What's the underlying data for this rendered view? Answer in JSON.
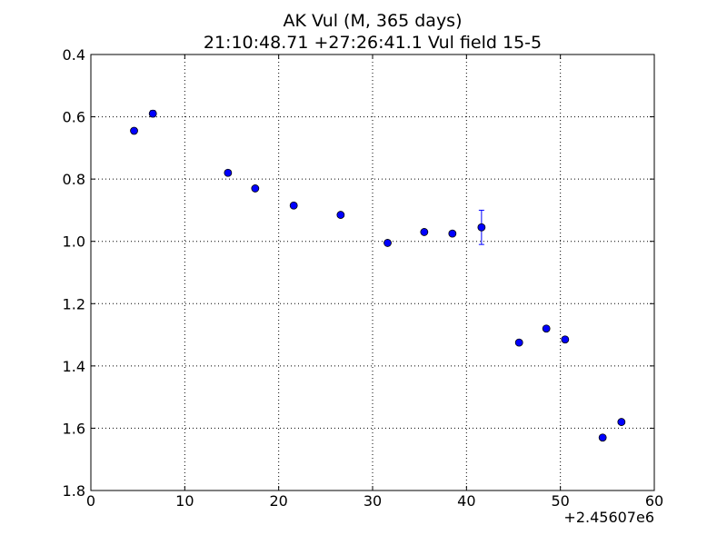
{
  "chart_data": {
    "type": "scatter",
    "title": "AK Vul (M, 365 days)",
    "subtitle": "21:10:48.71 +27:26:41.1 Vul field 15-5",
    "xlabel": "",
    "ylabel": "",
    "x_offset_label": "+2.45607e6",
    "xlim": [
      0,
      60
    ],
    "ylim": [
      1.8,
      0.4
    ],
    "y_inverted": true,
    "grid": true,
    "x_ticks": [
      "0",
      "10",
      "20",
      "30",
      "40",
      "50",
      "60"
    ],
    "y_ticks": [
      "0.4",
      "0.6",
      "0.8",
      "1.0",
      "1.2",
      "1.4",
      "1.6",
      "1.8"
    ],
    "marker_color": "#0000ff",
    "series": [
      {
        "x": [
          4.6,
          6.6,
          14.6,
          17.5,
          21.6,
          26.6,
          31.6,
          35.5,
          38.5,
          41.6,
          45.6,
          48.5,
          50.5,
          54.5,
          56.5
        ],
        "y": [
          0.645,
          0.59,
          0.78,
          0.83,
          0.885,
          0.915,
          1.005,
          0.97,
          0.975,
          0.955,
          1.325,
          1.28,
          1.315,
          1.63,
          1.58
        ],
        "y_err": [
          0.005,
          0.01,
          0.005,
          0.005,
          0.005,
          0.005,
          0.005,
          0.005,
          0.005,
          0.055,
          0.005,
          0.005,
          0.005,
          0.005,
          0.005
        ]
      }
    ]
  }
}
